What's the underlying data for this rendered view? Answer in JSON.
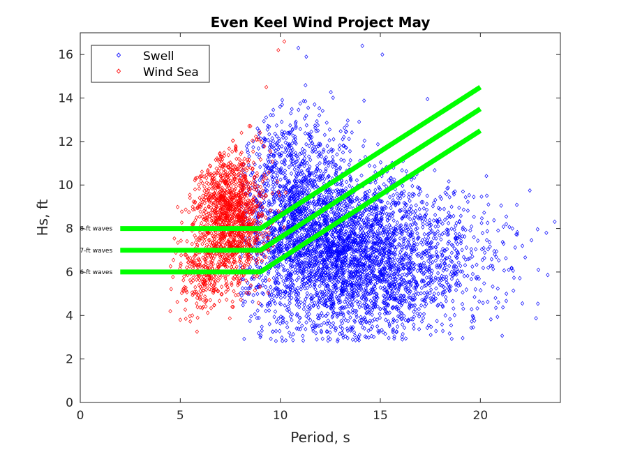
{
  "chart_data": {
    "type": "scatter",
    "title": "Even Keel Wind Project May",
    "xlabel": "Period, s",
    "ylabel": "Hs, ft",
    "xlim": [
      0,
      24
    ],
    "ylim": [
      0,
      17
    ],
    "xticks": [
      "0",
      "5",
      "10",
      "15",
      "20"
    ],
    "yticks": [
      "0",
      "2",
      "4",
      "6",
      "8",
      "10",
      "12",
      "14",
      "16"
    ],
    "grid": false,
    "legend_position": "top-left",
    "colors": {
      "swell": "#0000ff",
      "wind_sea": "#ff0000",
      "threshold": "#00ff00"
    },
    "series": [
      {
        "name": "Swell",
        "marker": "diamond",
        "clusters": [
          {
            "x_mean": 12.5,
            "x_sd": 2.4,
            "y_mean": 7.0,
            "y_sd": 2.0,
            "count": 2600
          },
          {
            "x_mean": 16.0,
            "x_sd": 2.2,
            "y_mean": 6.3,
            "y_sd": 1.7,
            "count": 900
          },
          {
            "x_mean": 10.5,
            "x_sd": 1.3,
            "y_mean": 10.0,
            "y_sd": 1.8,
            "count": 700
          },
          {
            "x_mean": 19.5,
            "x_sd": 1.8,
            "y_mean": 7.5,
            "y_sd": 1.6,
            "count": 90
          }
        ],
        "outliers": [
          [
            23.3,
            7.8
          ],
          [
            22.9,
            6.1
          ],
          [
            22.1,
            7.2
          ],
          [
            21.6,
            8.0
          ],
          [
            20.9,
            4.6
          ],
          [
            21.3,
            5.0
          ],
          [
            14.1,
            16.4
          ],
          [
            15.1,
            16.0
          ],
          [
            11.3,
            15.9
          ],
          [
            10.9,
            16.3
          ],
          [
            14.3,
            3.0
          ],
          [
            16.1,
            2.9
          ],
          [
            9.0,
            3.0
          ],
          [
            12.4,
            3.0
          ]
        ]
      },
      {
        "name": "Wind Sea",
        "marker": "diamond",
        "clusters": [
          {
            "x_mean": 7.5,
            "x_sd": 0.9,
            "y_mean": 8.6,
            "y_sd": 1.6,
            "count": 1300
          },
          {
            "x_mean": 6.0,
            "x_sd": 0.6,
            "y_mean": 5.8,
            "y_sd": 0.9,
            "count": 200
          }
        ],
        "outliers": [
          [
            4.5,
            4.2
          ],
          [
            5.0,
            3.8
          ],
          [
            5.6,
            4.0
          ],
          [
            10.2,
            16.6
          ],
          [
            9.9,
            16.2
          ],
          [
            9.3,
            14.5
          ]
        ]
      }
    ],
    "threshold_lines": [
      {
        "label": "8-ft waves",
        "points": [
          [
            2,
            8
          ],
          [
            9,
            8
          ],
          [
            20,
            14.5
          ]
        ]
      },
      {
        "label": "7-ft waves",
        "points": [
          [
            2,
            7
          ],
          [
            9,
            7
          ],
          [
            20,
            13.5
          ]
        ]
      },
      {
        "label": "6-ft waves",
        "points": [
          [
            2,
            6
          ],
          [
            9,
            6
          ],
          [
            20,
            12.5
          ]
        ]
      }
    ]
  }
}
